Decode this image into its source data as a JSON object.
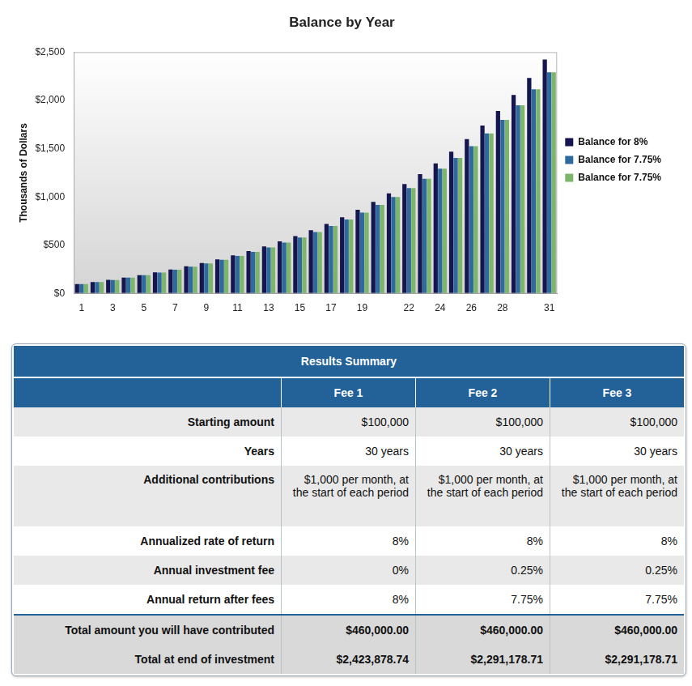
{
  "chart_data": {
    "type": "bar",
    "title": "Balance by Year",
    "y_label": "Thousands of Dollars",
    "categories": [
      "1",
      null,
      "3",
      null,
      "5",
      null,
      "7",
      null,
      "9",
      null,
      "11",
      null,
      "13",
      null,
      "15",
      null,
      "17",
      null,
      "19",
      null,
      null,
      "22",
      null,
      "24",
      null,
      "26",
      null,
      "28",
      null,
      null,
      "31"
    ],
    "series": [
      {
        "name": "Balance for 8%",
        "color": "#15154f",
        "values": [
          100,
          121,
          143,
          167,
          192,
          220,
          250,
          283,
          318,
          356,
          397,
          441,
          489,
          541,
          597,
          657,
          722,
          792,
          868,
          950,
          1039,
          1134,
          1238,
          1349,
          1470,
          1600,
          1740,
          1892,
          2056,
          2233,
          2424
        ]
      },
      {
        "name": "Balance for 7.75%",
        "color": "#2e6a9e",
        "values": [
          100,
          120,
          142,
          166,
          191,
          218,
          248,
          279,
          313,
          350,
          390,
          433,
          479,
          528,
          582,
          639,
          701,
          768,
          840,
          918,
          1001,
          1092,
          1189,
          1293,
          1406,
          1527,
          1658,
          1799,
          1951,
          2115,
          2291
        ]
      },
      {
        "name": "Balance for 7.75%",
        "color": "#7db56a",
        "values": [
          100,
          120,
          142,
          166,
          191,
          218,
          248,
          279,
          313,
          350,
          390,
          433,
          479,
          528,
          582,
          639,
          701,
          768,
          840,
          918,
          1001,
          1092,
          1189,
          1293,
          1406,
          1527,
          1658,
          1799,
          1951,
          2115,
          2291
        ]
      }
    ],
    "ylim": [
      0,
      2500
    ],
    "yticks": [
      {
        "value": 0,
        "label": "$0"
      },
      {
        "value": 500,
        "label": "$500"
      },
      {
        "value": 1000,
        "label": "$1,000"
      },
      {
        "value": 1500,
        "label": "$1,500"
      },
      {
        "value": 2000,
        "label": "$2,000"
      },
      {
        "value": 2500,
        "label": "$2,500"
      }
    ],
    "grid": false,
    "legend": "right"
  },
  "table": {
    "title": "Results Summary",
    "columns": [
      "Fee 1",
      "Fee 2",
      "Fee 3"
    ],
    "rows": [
      {
        "label": "Starting amount",
        "values": [
          "$100,000",
          "$100,000",
          "$100,000"
        ]
      },
      {
        "label": "Years",
        "values": [
          "30 years",
          "30 years",
          "30 years"
        ]
      },
      {
        "label": "Additional contributions",
        "values": [
          "$1,000 per month, at the start of each period",
          "$1,000 per month, at the start of each period",
          "$1,000 per month, at the start of each period"
        ]
      },
      {
        "label": "Annualized rate of return",
        "values": [
          "8%",
          "8%",
          "8%"
        ]
      },
      {
        "label": "Annual investment fee",
        "values": [
          "0%",
          "0.25%",
          "0.25%"
        ]
      },
      {
        "label": "Annual return after fees",
        "values": [
          "8%",
          "7.75%",
          "7.75%"
        ]
      },
      {
        "label": "Total amount you will have contributed",
        "values": [
          "$460,000.00",
          "$460,000.00",
          "$460,000.00"
        ]
      },
      {
        "label": "Total at end of investment",
        "values": [
          "$2,423,878.74",
          "$2,291,178.71",
          "$2,291,178.71"
        ]
      }
    ]
  }
}
